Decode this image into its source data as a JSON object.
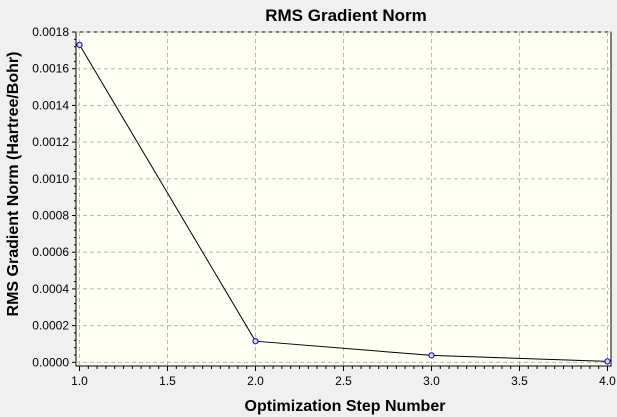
{
  "chart_data": {
    "type": "line",
    "title": "RMS Gradient Norm",
    "xlabel": "Optimization Step Number",
    "ylabel": "RMS Gradient Norm (Hartree/Bohr)",
    "x": [
      1.0,
      2.0,
      3.0,
      4.0
    ],
    "series": [
      {
        "values": [
          0.00173,
          0.000115,
          3.8e-05,
          5e-06
        ]
      }
    ],
    "xlim": [
      0.98,
      4.02
    ],
    "ylim": [
      -2e-05,
      0.0018
    ],
    "x_ticks": [
      "1.0",
      "1.5",
      "2.0",
      "2.5",
      "3.0",
      "3.5",
      "4.0"
    ],
    "y_ticks": [
      "0.0000",
      "0.0002",
      "0.0004",
      "0.0006",
      "0.0008",
      "0.0010",
      "0.0012",
      "0.0014",
      "0.0016",
      "0.0018"
    ],
    "grid": true,
    "colors": {
      "plot_background": "#fffff5",
      "figure_background": "#f0f0f0",
      "line": "#000000",
      "marker": "#0000cc",
      "grid": "#b8b8b8"
    }
  }
}
